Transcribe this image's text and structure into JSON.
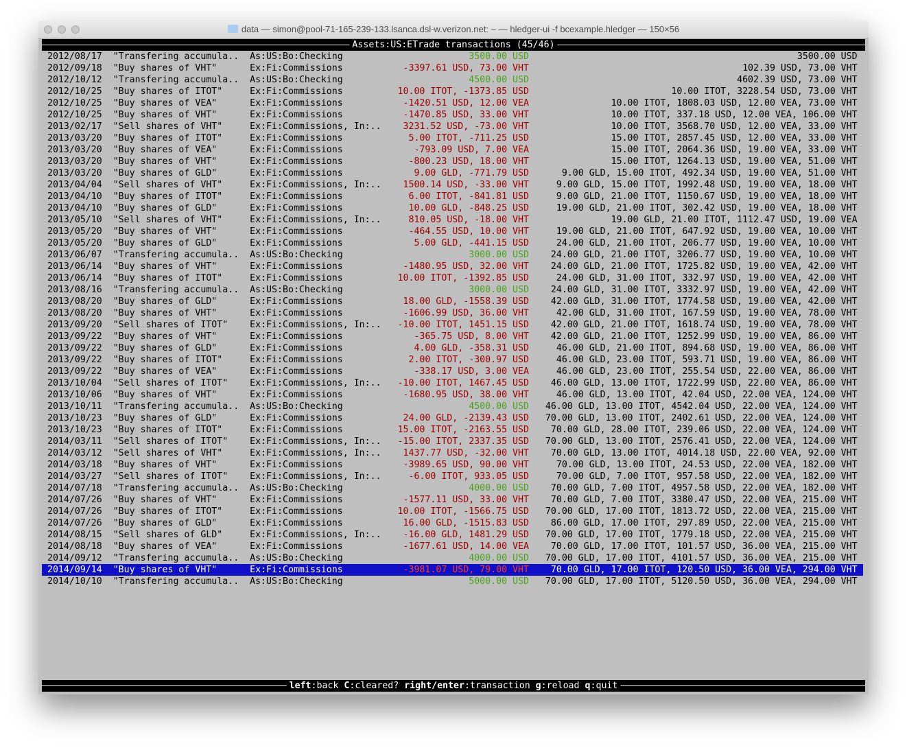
{
  "window": {
    "title": "data — simon@pool-71-165-239-133.lsanca.dsl-w.verizon.net: ~ — hledger-ui -f bcexample.hledger — 150×56"
  },
  "header": {
    "account": "Assets:US:ETrade",
    "label": "transactions",
    "position": "(45/46)"
  },
  "colors": {
    "positive": "#4aa31a",
    "negative": "#a00000",
    "selected_bg": "#1010c8"
  },
  "selected_index": 44,
  "rows": [
    {
      "date": "2012/08/17",
      "desc": "\"Transfering accumula..",
      "account": "As:US:Bo:Checking",
      "amount": "3500.00 USD",
      "balance": "3500.00 USD",
      "positive": true
    },
    {
      "date": "2012/09/18",
      "desc": "\"Buy shares of VHT\"",
      "account": "Ex:Fi:Commissions",
      "amount": "-3397.61 USD, 73.00 VHT",
      "balance": "102.39 USD, 73.00 VHT",
      "positive": false
    },
    {
      "date": "2012/10/12",
      "desc": "\"Transfering accumula..",
      "account": "As:US:Bo:Checking",
      "amount": "4500.00 USD",
      "balance": "4602.39 USD, 73.00 VHT",
      "positive": true
    },
    {
      "date": "2012/10/25",
      "desc": "\"Buy shares of ITOT\"",
      "account": "Ex:Fi:Commissions",
      "amount": "10.00 ITOT, -1373.85 USD",
      "balance": "10.00 ITOT, 3228.54 USD, 73.00 VHT",
      "positive": false
    },
    {
      "date": "2012/10/25",
      "desc": "\"Buy shares of VEA\"",
      "account": "Ex:Fi:Commissions",
      "amount": "-1420.51 USD, 12.00 VEA",
      "balance": "10.00 ITOT, 1808.03 USD, 12.00 VEA, 73.00 VHT",
      "positive": false
    },
    {
      "date": "2012/10/25",
      "desc": "\"Buy shares of VHT\"",
      "account": "Ex:Fi:Commissions",
      "amount": "-1470.85 USD, 33.00 VHT",
      "balance": "10.00 ITOT, 337.18 USD, 12.00 VEA, 106.00 VHT",
      "positive": false
    },
    {
      "date": "2013/02/17",
      "desc": "\"Sell shares of VHT\"",
      "account": "Ex:Fi:Commissions, In:..",
      "amount": "3231.52 USD, -73.00 VHT",
      "balance": "10.00 ITOT, 3568.70 USD, 12.00 VEA, 33.00 VHT",
      "positive": false
    },
    {
      "date": "2013/03/20",
      "desc": "\"Buy shares of ITOT\"",
      "account": "Ex:Fi:Commissions",
      "amount": "5.00 ITOT, -711.25 USD",
      "balance": "15.00 ITOT, 2857.45 USD, 12.00 VEA, 33.00 VHT",
      "positive": false
    },
    {
      "date": "2013/03/20",
      "desc": "\"Buy shares of VEA\"",
      "account": "Ex:Fi:Commissions",
      "amount": "-793.09 USD, 7.00 VEA",
      "balance": "15.00 ITOT, 2064.36 USD, 19.00 VEA, 33.00 VHT",
      "positive": false
    },
    {
      "date": "2013/03/20",
      "desc": "\"Buy shares of VHT\"",
      "account": "Ex:Fi:Commissions",
      "amount": "-800.23 USD, 18.00 VHT",
      "balance": "15.00 ITOT, 1264.13 USD, 19.00 VEA, 51.00 VHT",
      "positive": false
    },
    {
      "date": "2013/03/20",
      "desc": "\"Buy shares of GLD\"",
      "account": "Ex:Fi:Commissions",
      "amount": "9.00 GLD, -771.79 USD",
      "balance": "9.00 GLD, 15.00 ITOT, 492.34 USD, 19.00 VEA, 51.00 VHT",
      "positive": false
    },
    {
      "date": "2013/04/04",
      "desc": "\"Sell shares of VHT\"",
      "account": "Ex:Fi:Commissions, In:..",
      "amount": "1500.14 USD, -33.00 VHT",
      "balance": "9.00 GLD, 15.00 ITOT, 1992.48 USD, 19.00 VEA, 18.00 VHT",
      "positive": false
    },
    {
      "date": "2013/04/10",
      "desc": "\"Buy shares of ITOT\"",
      "account": "Ex:Fi:Commissions",
      "amount": "6.00 ITOT, -841.81 USD",
      "balance": "9.00 GLD, 21.00 ITOT, 1150.67 USD, 19.00 VEA, 18.00 VHT",
      "positive": false
    },
    {
      "date": "2013/04/10",
      "desc": "\"Buy shares of GLD\"",
      "account": "Ex:Fi:Commissions",
      "amount": "10.00 GLD, -848.25 USD",
      "balance": "19.00 GLD, 21.00 ITOT, 302.42 USD, 19.00 VEA, 18.00 VHT",
      "positive": false
    },
    {
      "date": "2013/05/10",
      "desc": "\"Sell shares of VHT\"",
      "account": "Ex:Fi:Commissions, In:..",
      "amount": "810.05 USD, -18.00 VHT",
      "balance": "19.00 GLD, 21.00 ITOT, 1112.47 USD, 19.00 VEA",
      "positive": false
    },
    {
      "date": "2013/05/20",
      "desc": "\"Buy shares of VHT\"",
      "account": "Ex:Fi:Commissions",
      "amount": "-464.55 USD, 10.00 VHT",
      "balance": "19.00 GLD, 21.00 ITOT, 647.92 USD, 19.00 VEA, 10.00 VHT",
      "positive": false
    },
    {
      "date": "2013/05/20",
      "desc": "\"Buy shares of GLD\"",
      "account": "Ex:Fi:Commissions",
      "amount": "5.00 GLD, -441.15 USD",
      "balance": "24.00 GLD, 21.00 ITOT, 206.77 USD, 19.00 VEA, 10.00 VHT",
      "positive": false
    },
    {
      "date": "2013/06/07",
      "desc": "\"Transfering accumula..",
      "account": "As:US:Bo:Checking",
      "amount": "3000.00 USD",
      "balance": "24.00 GLD, 21.00 ITOT, 3206.77 USD, 19.00 VEA, 10.00 VHT",
      "positive": true
    },
    {
      "date": "2013/06/14",
      "desc": "\"Buy shares of VHT\"",
      "account": "Ex:Fi:Commissions",
      "amount": "-1480.95 USD, 32.00 VHT",
      "balance": "24.00 GLD, 21.00 ITOT, 1725.82 USD, 19.00 VEA, 42.00 VHT",
      "positive": false
    },
    {
      "date": "2013/06/14",
      "desc": "\"Buy shares of ITOT\"",
      "account": "Ex:Fi:Commissions",
      "amount": "10.00 ITOT, -1392.85 USD",
      "balance": "24.00 GLD, 31.00 ITOT, 332.97 USD, 19.00 VEA, 42.00 VHT",
      "positive": false
    },
    {
      "date": "2013/08/16",
      "desc": "\"Transfering accumula..",
      "account": "As:US:Bo:Checking",
      "amount": "3000.00 USD",
      "balance": "24.00 GLD, 31.00 ITOT, 3332.97 USD, 19.00 VEA, 42.00 VHT",
      "positive": true
    },
    {
      "date": "2013/08/20",
      "desc": "\"Buy shares of GLD\"",
      "account": "Ex:Fi:Commissions",
      "amount": "18.00 GLD, -1558.39 USD",
      "balance": "42.00 GLD, 31.00 ITOT, 1774.58 USD, 19.00 VEA, 42.00 VHT",
      "positive": false
    },
    {
      "date": "2013/08/20",
      "desc": "\"Buy shares of VHT\"",
      "account": "Ex:Fi:Commissions",
      "amount": "-1606.99 USD, 36.00 VHT",
      "balance": "42.00 GLD, 31.00 ITOT, 167.59 USD, 19.00 VEA, 78.00 VHT",
      "positive": false
    },
    {
      "date": "2013/09/20",
      "desc": "\"Sell shares of ITOT\"",
      "account": "Ex:Fi:Commissions, In:..",
      "amount": "-10.00 ITOT, 1451.15 USD",
      "balance": "42.00 GLD, 21.00 ITOT, 1618.74 USD, 19.00 VEA, 78.00 VHT",
      "positive": false
    },
    {
      "date": "2013/09/22",
      "desc": "\"Buy shares of VHT\"",
      "account": "Ex:Fi:Commissions",
      "amount": "-365.75 USD, 8.00 VHT",
      "balance": "42.00 GLD, 21.00 ITOT, 1252.99 USD, 19.00 VEA, 86.00 VHT",
      "positive": false
    },
    {
      "date": "2013/09/22",
      "desc": "\"Buy shares of GLD\"",
      "account": "Ex:Fi:Commissions",
      "amount": "4.00 GLD, -358.31 USD",
      "balance": "46.00 GLD, 21.00 ITOT, 894.68 USD, 19.00 VEA, 86.00 VHT",
      "positive": false
    },
    {
      "date": "2013/09/22",
      "desc": "\"Buy shares of ITOT\"",
      "account": "Ex:Fi:Commissions",
      "amount": "2.00 ITOT, -300.97 USD",
      "balance": "46.00 GLD, 23.00 ITOT, 593.71 USD, 19.00 VEA, 86.00 VHT",
      "positive": false
    },
    {
      "date": "2013/09/22",
      "desc": "\"Buy shares of VEA\"",
      "account": "Ex:Fi:Commissions",
      "amount": "-338.17 USD, 3.00 VEA",
      "balance": "46.00 GLD, 23.00 ITOT, 255.54 USD, 22.00 VEA, 86.00 VHT",
      "positive": false
    },
    {
      "date": "2013/10/04",
      "desc": "\"Sell shares of ITOT\"",
      "account": "Ex:Fi:Commissions, In:..",
      "amount": "-10.00 ITOT, 1467.45 USD",
      "balance": "46.00 GLD, 13.00 ITOT, 1722.99 USD, 22.00 VEA, 86.00 VHT",
      "positive": false
    },
    {
      "date": "2013/10/06",
      "desc": "\"Buy shares of VHT\"",
      "account": "Ex:Fi:Commissions",
      "amount": "-1680.95 USD, 38.00 VHT",
      "balance": "46.00 GLD, 13.00 ITOT, 42.04 USD, 22.00 VEA, 124.00 VHT",
      "positive": false
    },
    {
      "date": "2013/10/11",
      "desc": "\"Transfering accumula..",
      "account": "As:US:Bo:Checking",
      "amount": "4500.00 USD",
      "balance": "46.00 GLD, 13.00 ITOT, 4542.04 USD, 22.00 VEA, 124.00 VHT",
      "positive": true
    },
    {
      "date": "2013/10/23",
      "desc": "\"Buy shares of GLD\"",
      "account": "Ex:Fi:Commissions",
      "amount": "24.00 GLD, -2139.43 USD",
      "balance": "70.00 GLD, 13.00 ITOT, 2402.61 USD, 22.00 VEA, 124.00 VHT",
      "positive": false
    },
    {
      "date": "2013/10/23",
      "desc": "\"Buy shares of ITOT\"",
      "account": "Ex:Fi:Commissions",
      "amount": "15.00 ITOT, -2163.55 USD",
      "balance": "70.00 GLD, 28.00 ITOT, 239.06 USD, 22.00 VEA, 124.00 VHT",
      "positive": false
    },
    {
      "date": "2014/03/11",
      "desc": "\"Sell shares of ITOT\"",
      "account": "Ex:Fi:Commissions, In:..",
      "amount": "-15.00 ITOT, 2337.35 USD",
      "balance": "70.00 GLD, 13.00 ITOT, 2576.41 USD, 22.00 VEA, 124.00 VHT",
      "positive": false
    },
    {
      "date": "2014/03/12",
      "desc": "\"Sell shares of VHT\"",
      "account": "Ex:Fi:Commissions, In:..",
      "amount": "1437.77 USD, -32.00 VHT",
      "balance": "70.00 GLD, 13.00 ITOT, 4014.18 USD, 22.00 VEA, 92.00 VHT",
      "positive": false
    },
    {
      "date": "2014/03/18",
      "desc": "\"Buy shares of VHT\"",
      "account": "Ex:Fi:Commissions",
      "amount": "-3989.65 USD, 90.00 VHT",
      "balance": "70.00 GLD, 13.00 ITOT, 24.53 USD, 22.00 VEA, 182.00 VHT",
      "positive": false
    },
    {
      "date": "2014/03/27",
      "desc": "\"Sell shares of ITOT\"",
      "account": "Ex:Fi:Commissions, In:..",
      "amount": "-6.00 ITOT, 933.05 USD",
      "balance": "70.00 GLD, 7.00 ITOT, 957.58 USD, 22.00 VEA, 182.00 VHT",
      "positive": false
    },
    {
      "date": "2014/07/18",
      "desc": "\"Transfering accumula..",
      "account": "As:US:Bo:Checking",
      "amount": "4000.00 USD",
      "balance": "70.00 GLD, 7.00 ITOT, 4957.58 USD, 22.00 VEA, 182.00 VHT",
      "positive": true
    },
    {
      "date": "2014/07/26",
      "desc": "\"Buy shares of VHT\"",
      "account": "Ex:Fi:Commissions",
      "amount": "-1577.11 USD, 33.00 VHT",
      "balance": "70.00 GLD, 7.00 ITOT, 3380.47 USD, 22.00 VEA, 215.00 VHT",
      "positive": false
    },
    {
      "date": "2014/07/26",
      "desc": "\"Buy shares of ITOT\"",
      "account": "Ex:Fi:Commissions",
      "amount": "10.00 ITOT, -1566.75 USD",
      "balance": "70.00 GLD, 17.00 ITOT, 1813.72 USD, 22.00 VEA, 215.00 VHT",
      "positive": false
    },
    {
      "date": "2014/07/26",
      "desc": "\"Buy shares of GLD\"",
      "account": "Ex:Fi:Commissions",
      "amount": "16.00 GLD, -1515.83 USD",
      "balance": "86.00 GLD, 17.00 ITOT, 297.89 USD, 22.00 VEA, 215.00 VHT",
      "positive": false
    },
    {
      "date": "2014/08/15",
      "desc": "\"Sell shares of GLD\"",
      "account": "Ex:Fi:Commissions, In:..",
      "amount": "-16.00 GLD, 1481.29 USD",
      "balance": "70.00 GLD, 17.00 ITOT, 1779.18 USD, 22.00 VEA, 215.00 VHT",
      "positive": false
    },
    {
      "date": "2014/08/18",
      "desc": "\"Buy shares of VEA\"",
      "account": "Ex:Fi:Commissions",
      "amount": "-1677.61 USD, 14.00 VEA",
      "balance": "70.00 GLD, 17.00 ITOT, 101.57 USD, 36.00 VEA, 215.00 VHT",
      "positive": false
    },
    {
      "date": "2014/09/12",
      "desc": "\"Transfering accumula..",
      "account": "As:US:Bo:Checking",
      "amount": "4000.00 USD",
      "balance": "70.00 GLD, 17.00 ITOT, 4101.57 USD, 36.00 VEA, 215.00 VHT",
      "positive": true
    },
    {
      "date": "2014/09/14",
      "desc": "\"Buy shares of VHT\"",
      "account": "Ex:Fi:Commissions",
      "amount": "-3981.07 USD, 79.00 VHT",
      "balance": "70.00 GLD, 17.00 ITOT, 120.50 USD, 36.00 VEA, 294.00 VHT",
      "positive": false
    },
    {
      "date": "2014/10/10",
      "desc": "\"Transfering accumula..",
      "account": "As:US:Bo:Checking",
      "amount": "5000.00 USD",
      "balance": "70.00 GLD, 17.00 ITOT, 5120.50 USD, 36.00 VEA, 294.00 VHT",
      "positive": true
    }
  ],
  "footer": {
    "keys": [
      {
        "key": "left",
        "action": "back"
      },
      {
        "key": "C",
        "action": "cleared?"
      },
      {
        "key": "right/enter",
        "action": "transaction"
      },
      {
        "key": "g",
        "action": "reload"
      },
      {
        "key": "q",
        "action": "quit"
      }
    ]
  }
}
